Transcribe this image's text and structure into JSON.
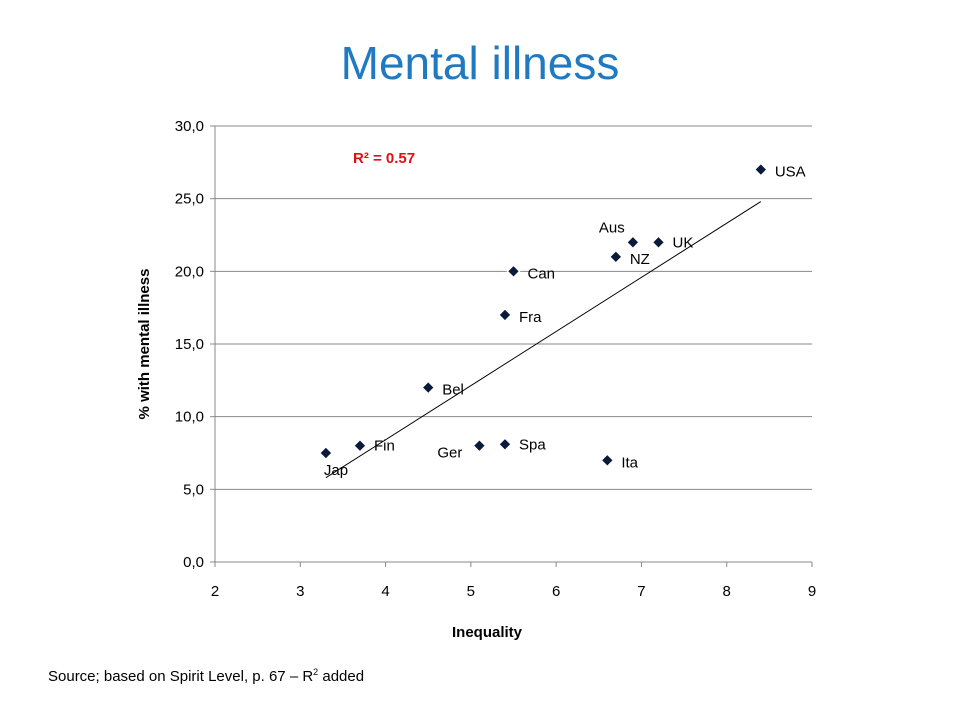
{
  "slide": {
    "title": "Mental illness",
    "source_prefix": "Source;  based on Spirit Level, p. 67 – R",
    "source_sup": "2",
    "source_suffix": " added"
  },
  "chart_data": {
    "type": "scatter",
    "title": "",
    "xlabel": "Inequality",
    "ylabel": "% with mental illness",
    "xlim": [
      2,
      9
    ],
    "ylim": [
      0,
      30
    ],
    "x_ticks": [
      2,
      3,
      4,
      5,
      6,
      7,
      8,
      9
    ],
    "y_ticks": [
      "0,0",
      "5,0",
      "10,0",
      "15,0",
      "20,0",
      "25,0",
      "30,0"
    ],
    "y_tick_values": [
      0,
      5,
      10,
      15,
      20,
      25,
      30
    ],
    "grid": "horizontal",
    "annotation": "R² = 0.57",
    "colors": {
      "marker": "#0a1a3a",
      "annotation": "#e01010",
      "title": "#1f7ac2",
      "grid": "#888888",
      "trendline": "#000000"
    },
    "points": [
      {
        "label": "Jap",
        "x": 3.3,
        "y": 7.5
      },
      {
        "label": "Fin",
        "x": 3.7,
        "y": 8.0
      },
      {
        "label": "Bel",
        "x": 4.5,
        "y": 12.0
      },
      {
        "label": "Ger",
        "x": 5.1,
        "y": 8.0
      },
      {
        "label": "Spa",
        "x": 5.4,
        "y": 8.1
      },
      {
        "label": "Fra",
        "x": 5.4,
        "y": 17.0
      },
      {
        "label": "Can",
        "x": 5.5,
        "y": 20.0
      },
      {
        "label": "Ita",
        "x": 6.6,
        "y": 7.0
      },
      {
        "label": "NZ",
        "x": 6.7,
        "y": 21.0
      },
      {
        "label": "Aus",
        "x": 6.9,
        "y": 22.0
      },
      {
        "label": "UK",
        "x": 7.2,
        "y": 22.0
      },
      {
        "label": "USA",
        "x": 8.4,
        "y": 27.0
      }
    ],
    "trendline": {
      "x": [
        3.3,
        8.4
      ],
      "y": [
        5.8,
        24.8
      ]
    }
  }
}
